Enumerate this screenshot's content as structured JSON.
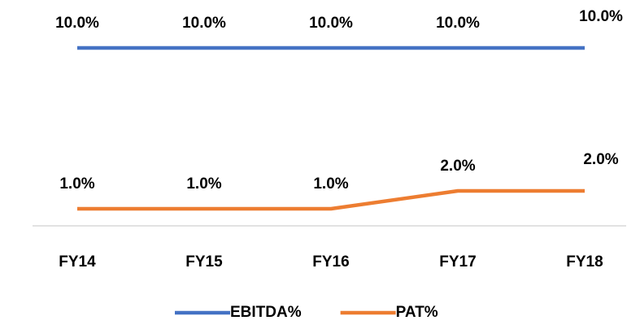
{
  "chart_data": {
    "type": "line",
    "categories": [
      "FY14",
      "FY15",
      "FY16",
      "FY17",
      "FY18"
    ],
    "series": [
      {
        "name": "EBITDA%",
        "color": "#4472c4",
        "values": [
          10,
          10,
          10,
          10,
          10
        ],
        "value_labels": [
          "10.0%",
          "10.0%",
          "10.0%",
          "10.0%",
          "10.0%"
        ]
      },
      {
        "name": "PAT%",
        "color": "#ed7d31",
        "values": [
          1,
          1,
          1,
          2,
          2
        ],
        "value_labels": [
          "1.0%",
          "1.0%",
          "1.0%",
          "2.0%",
          "2.0%"
        ]
      }
    ],
    "ylim": [
      0,
      11
    ],
    "legend": "bottom"
  }
}
